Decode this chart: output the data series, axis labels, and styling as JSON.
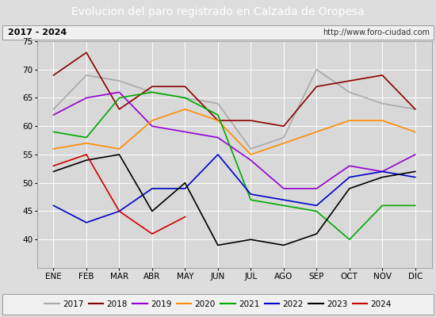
{
  "title": "Evolucion del paro registrado en Calzada de Oropesa",
  "subtitle_left": "2017 - 2024",
  "subtitle_right": "http://www.foro-ciudad.com",
  "months": [
    "ENE",
    "FEB",
    "MAR",
    "ABR",
    "MAY",
    "JUN",
    "JUL",
    "AGO",
    "SEP",
    "OCT",
    "NOV",
    "DIC"
  ],
  "ylim": [
    35,
    75
  ],
  "yticks": [
    40,
    45,
    50,
    55,
    60,
    65,
    70,
    75
  ],
  "series": {
    "2017": {
      "color": "#aaaaaa",
      "values": [
        63,
        69,
        68,
        66,
        65,
        64,
        56,
        58,
        70,
        66,
        64,
        63
      ]
    },
    "2018": {
      "color": "#8B0000",
      "values": [
        69,
        73,
        63,
        67,
        67,
        61,
        61,
        60,
        67,
        68,
        69,
        63
      ]
    },
    "2019": {
      "color": "#9400D3",
      "values": [
        62,
        65,
        66,
        60,
        59,
        58,
        54,
        49,
        49,
        53,
        52,
        55
      ]
    },
    "2020": {
      "color": "#FF8C00",
      "values": [
        56,
        57,
        56,
        61,
        63,
        61,
        55,
        57,
        59,
        61,
        61,
        59
      ]
    },
    "2021": {
      "color": "#00AA00",
      "values": [
        59,
        58,
        65,
        66,
        65,
        62,
        47,
        46,
        45,
        40,
        46,
        46
      ]
    },
    "2022": {
      "color": "#0000CC",
      "values": [
        46,
        43,
        45,
        49,
        49,
        55,
        48,
        47,
        46,
        51,
        52,
        51
      ]
    },
    "2023": {
      "color": "#000000",
      "values": [
        52,
        54,
        55,
        45,
        50,
        39,
        40,
        39,
        41,
        49,
        51,
        52
      ]
    },
    "2024": {
      "color": "#CC0000",
      "values": [
        53,
        55,
        45,
        41,
        44,
        null,
        null,
        null,
        null,
        null,
        null,
        null
      ]
    }
  },
  "background_color": "#dddddd",
  "plot_bg_color": "#d8d8d8",
  "header_bg_color": "#4a6fa5",
  "header_text_color": "#ffffff",
  "subtitle_box_color": "#f0f0f0",
  "title_fontsize": 10,
  "tick_fontsize": 7.5,
  "legend_fontsize": 7.5
}
